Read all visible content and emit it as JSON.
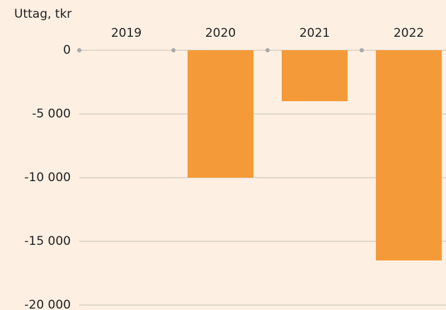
{
  "chart_data": {
    "type": "bar",
    "y_label": "Uttag, tkr",
    "categories": [
      "2019",
      "2020",
      "2021",
      "2022"
    ],
    "values": [
      0,
      -10000,
      -4000,
      -16500
    ],
    "color": "#f59a38",
    "ylim": [
      -20000,
      0
    ],
    "yticks": [
      0,
      {
        "value": -5000,
        "label": "-5 000"
      },
      {
        "value": -10000,
        "label": "-10 000"
      },
      {
        "value": -15000,
        "label": "-15 000"
      },
      {
        "value": -20000,
        "label": "-20 000"
      }
    ],
    "grid": true
  }
}
